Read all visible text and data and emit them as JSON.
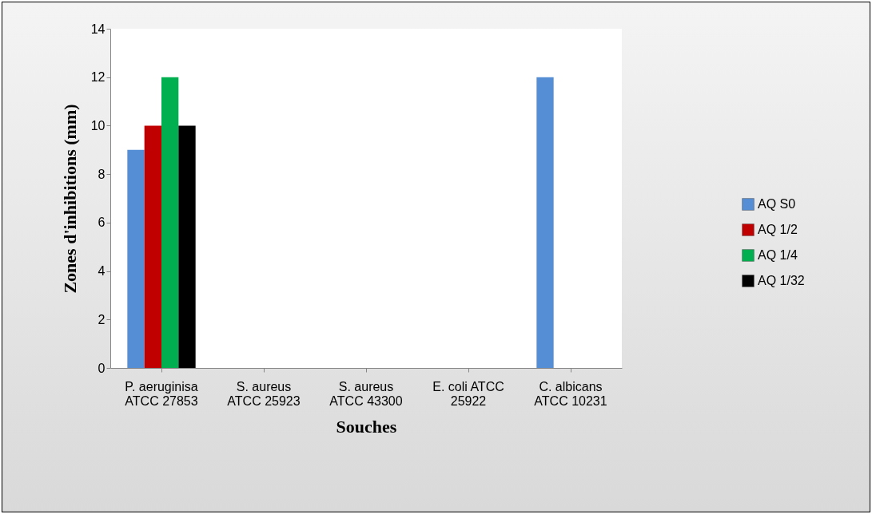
{
  "chart_data": {
    "type": "bar",
    "xlabel": "Souches",
    "ylabel": "Zones d'inhibitions (mm)",
    "categories": [
      "P. aeruginisa ATCC 27853",
      "S. aureus ATCC 25923",
      "S. aureus ATCC 43300",
      "E. coli ATCC 25922",
      "C. albicans ATCC 10231"
    ],
    "series": [
      {
        "name": "AQ S0",
        "color": "#558ed5",
        "values": [
          9,
          0,
          0,
          0,
          12
        ]
      },
      {
        "name": "AQ 1/2",
        "color": "#c00000",
        "values": [
          10,
          0,
          0,
          0,
          0
        ]
      },
      {
        "name": "AQ 1/4",
        "color": "#00b050",
        "values": [
          12,
          0,
          0,
          0,
          0
        ]
      },
      {
        "name": "AQ 1/32",
        "color": "#000000",
        "values": [
          10,
          0,
          0,
          0,
          0
        ]
      }
    ],
    "ylim": [
      0,
      14
    ],
    "yticks": [
      0,
      2,
      4,
      6,
      8,
      10,
      12,
      14
    ],
    "grid": false,
    "legend": "right"
  }
}
